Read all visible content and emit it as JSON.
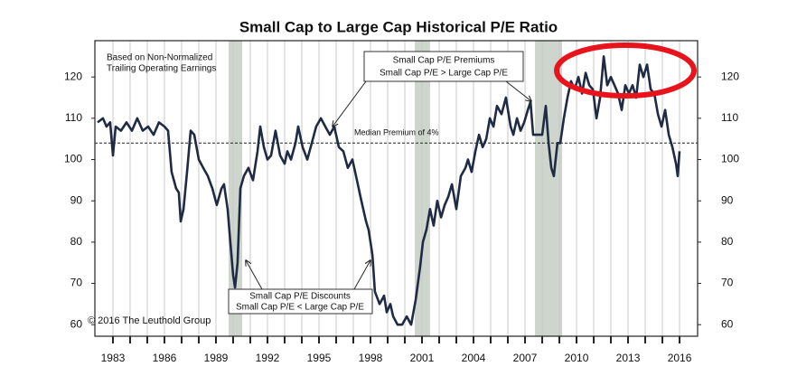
{
  "chart_data": {
    "type": "line",
    "title": "Small Cap to Large Cap Historical P/E Ratio",
    "x": [
      1982.11,
      1982.42,
      1982.63,
      1982.84,
      1983.0,
      1983.16,
      1983.47,
      1983.79,
      1984.11,
      1984.42,
      1984.74,
      1985.05,
      1985.37,
      1985.68,
      1986.0,
      1986.21,
      1986.42,
      1986.68,
      1986.84,
      1986.95,
      1987.11,
      1987.32,
      1987.53,
      1987.74,
      1988.0,
      1988.26,
      1988.53,
      1988.79,
      1989.05,
      1989.32,
      1989.47,
      1989.68,
      1989.84,
      1990.0,
      1990.11,
      1990.26,
      1990.42,
      1990.63,
      1990.89,
      1991.16,
      1991.42,
      1991.58,
      1991.79,
      1992.0,
      1992.21,
      1992.47,
      1992.74,
      1993.0,
      1993.16,
      1993.37,
      1993.63,
      1993.79,
      1994.05,
      1994.32,
      1994.58,
      1994.84,
      1995.11,
      1995.37,
      1995.63,
      1995.89,
      1996.16,
      1996.42,
      1996.68,
      1996.95,
      1997.21,
      1997.47,
      1997.74,
      1997.89,
      1998.11,
      1998.26,
      1998.53,
      1998.79,
      1998.95,
      1999.16,
      1999.32,
      1999.58,
      1999.84,
      2000.11,
      2000.37,
      2000.63,
      2000.89,
      2001.05,
      2001.26,
      2001.47,
      2001.68,
      2001.89,
      2002.11,
      2002.32,
      2002.53,
      2002.74,
      2003.0,
      2003.26,
      2003.53,
      2003.68,
      2003.89,
      2004.11,
      2004.32,
      2004.53,
      2004.74,
      2004.95,
      2005.16,
      2005.37,
      2005.63,
      2005.89,
      2006.16,
      2006.32,
      2006.53,
      2006.74,
      2006.95,
      2007.16,
      2007.32,
      2007.47,
      2007.74,
      2008.0,
      2008.21,
      2008.37,
      2008.53,
      2008.68,
      2008.89,
      2009.05,
      2009.26,
      2009.47,
      2009.68,
      2009.89,
      2010.11,
      2010.32,
      2010.53,
      2010.74,
      2010.95,
      2011.16,
      2011.37,
      2011.58,
      2011.79,
      2012.0,
      2012.21,
      2012.42,
      2012.63,
      2012.84,
      2013.05,
      2013.26,
      2013.47,
      2013.68,
      2013.89,
      2014.11,
      2014.32,
      2014.53,
      2014.74,
      2014.95,
      2015.16,
      2015.37,
      2015.58,
      2015.79,
      2015.89,
      2016.0
    ],
    "series": [
      {
        "color": "#1f2a44",
        "values": [
          109,
          110,
          108,
          109,
          101,
          108,
          107,
          109,
          107,
          110,
          107,
          108,
          106,
          109,
          108,
          107,
          97,
          93,
          92,
          85,
          88,
          97,
          107,
          106,
          100,
          98,
          96,
          93,
          89,
          93,
          94,
          88,
          80,
          72,
          69,
          75,
          93,
          96,
          98,
          95,
          102,
          108,
          103,
          100,
          101,
          107,
          101,
          99,
          102,
          100,
          104,
          108,
          103,
          100,
          104,
          108,
          110,
          108,
          106,
          108,
          103,
          102,
          98,
          100,
          95,
          90,
          85,
          83,
          77,
          68,
          65,
          67,
          63,
          65,
          62,
          60,
          60,
          62,
          60,
          66,
          74,
          80,
          83,
          88,
          84,
          90,
          86,
          89,
          91,
          94,
          88,
          96,
          98,
          100,
          97,
          102,
          106,
          103,
          105,
          110,
          108,
          113,
          111,
          115,
          108,
          106,
          110,
          107,
          109,
          112,
          114,
          106,
          106,
          106,
          113,
          104,
          98,
          96,
          104,
          104,
          110,
          115,
          119,
          117,
          120,
          116,
          121,
          118,
          117,
          110,
          115,
          125,
          118,
          120,
          118,
          116,
          112,
          118,
          116,
          118,
          115,
          123,
          120,
          123,
          117,
          116,
          111,
          108,
          112,
          106,
          103,
          99,
          96,
          102
        ]
      }
    ],
    "xlim": [
      1981.95,
      2017.05
    ],
    "ylim": [
      57.2,
      128.8
    ],
    "xticks": [
      1983,
      1986,
      1989,
      1992,
      1995,
      1998,
      2001,
      2004,
      2007,
      2010,
      2013,
      2016
    ],
    "xgrid": [
      1983,
      1984,
      1985,
      1986,
      1987,
      1988,
      1989,
      1990,
      1991,
      1992,
      1993,
      1994,
      1995,
      1996,
      1997,
      1998,
      1999,
      2000,
      2001,
      2002,
      2003,
      2004,
      2005,
      2006,
      2007,
      2008,
      2009,
      2010,
      2011,
      2012,
      2013,
      2014,
      2015,
      2016
    ],
    "yticks": [
      60,
      70,
      80,
      90,
      100,
      110,
      120
    ],
    "shaded_regions": [
      [
        1989.74,
        1990.53
      ],
      [
        2000.58,
        2001.47
      ],
      [
        2007.58,
        2009.16
      ]
    ],
    "shade_color": "#cdd5cc",
    "median": {
      "value": 104,
      "label": "Median Premium of 4%"
    },
    "note": [
      "Based on Non-Normalized",
      "Trailing Operating Earnings"
    ],
    "annotations": [
      {
        "lines": [
          "Small Cap P/E Premiums",
          "Small Cap P/E > Large Cap P/E"
        ]
      },
      {
        "lines": [
          "Small Cap P/E Discounts",
          "Small Cap P/E < Large Cap P/E"
        ]
      }
    ],
    "copyright": "© 2016 The Leuthold Group"
  }
}
